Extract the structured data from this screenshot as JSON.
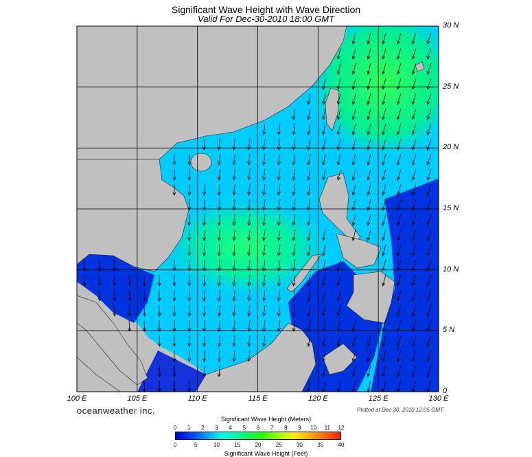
{
  "title": "Significant Wave Height with Wave Direction",
  "subtitle": "Valid For Dec-30-2010 18:00 GMT",
  "brand": "oceanweather inc.",
  "plotted": "Plotted at Dec 30, 2010 12:05 GMT",
  "lat_labels": [
    "30 N",
    "25 N",
    "20 N",
    "15 N",
    "10 N",
    "5 N",
    "0"
  ],
  "lon_labels": [
    "100 E",
    "105 E",
    "110 E",
    "115 E",
    "120 E",
    "125 E",
    "130 E"
  ],
  "colorbar": {
    "meters_title": "Significant Wave Height (Meters)",
    "feet_title": "Significant Wave Height (Feet)",
    "meters_ticks": [
      "0",
      "1",
      "2",
      "3",
      "4",
      "5",
      "6",
      "7",
      "8",
      "9",
      "10",
      "11",
      "12"
    ],
    "feet_ticks": [
      "0",
      "5",
      "10",
      "15",
      "20",
      "25",
      "30",
      "35",
      "40"
    ]
  },
  "colors": {
    "land": "#c0c0c0",
    "sea_low": "#0022dd",
    "sea_mid": "#00ccff",
    "sea_high": "#33ff66",
    "arrow": "#000000"
  },
  "map_extent": {
    "lon": [
      100,
      130
    ],
    "lat": [
      0,
      30
    ]
  }
}
